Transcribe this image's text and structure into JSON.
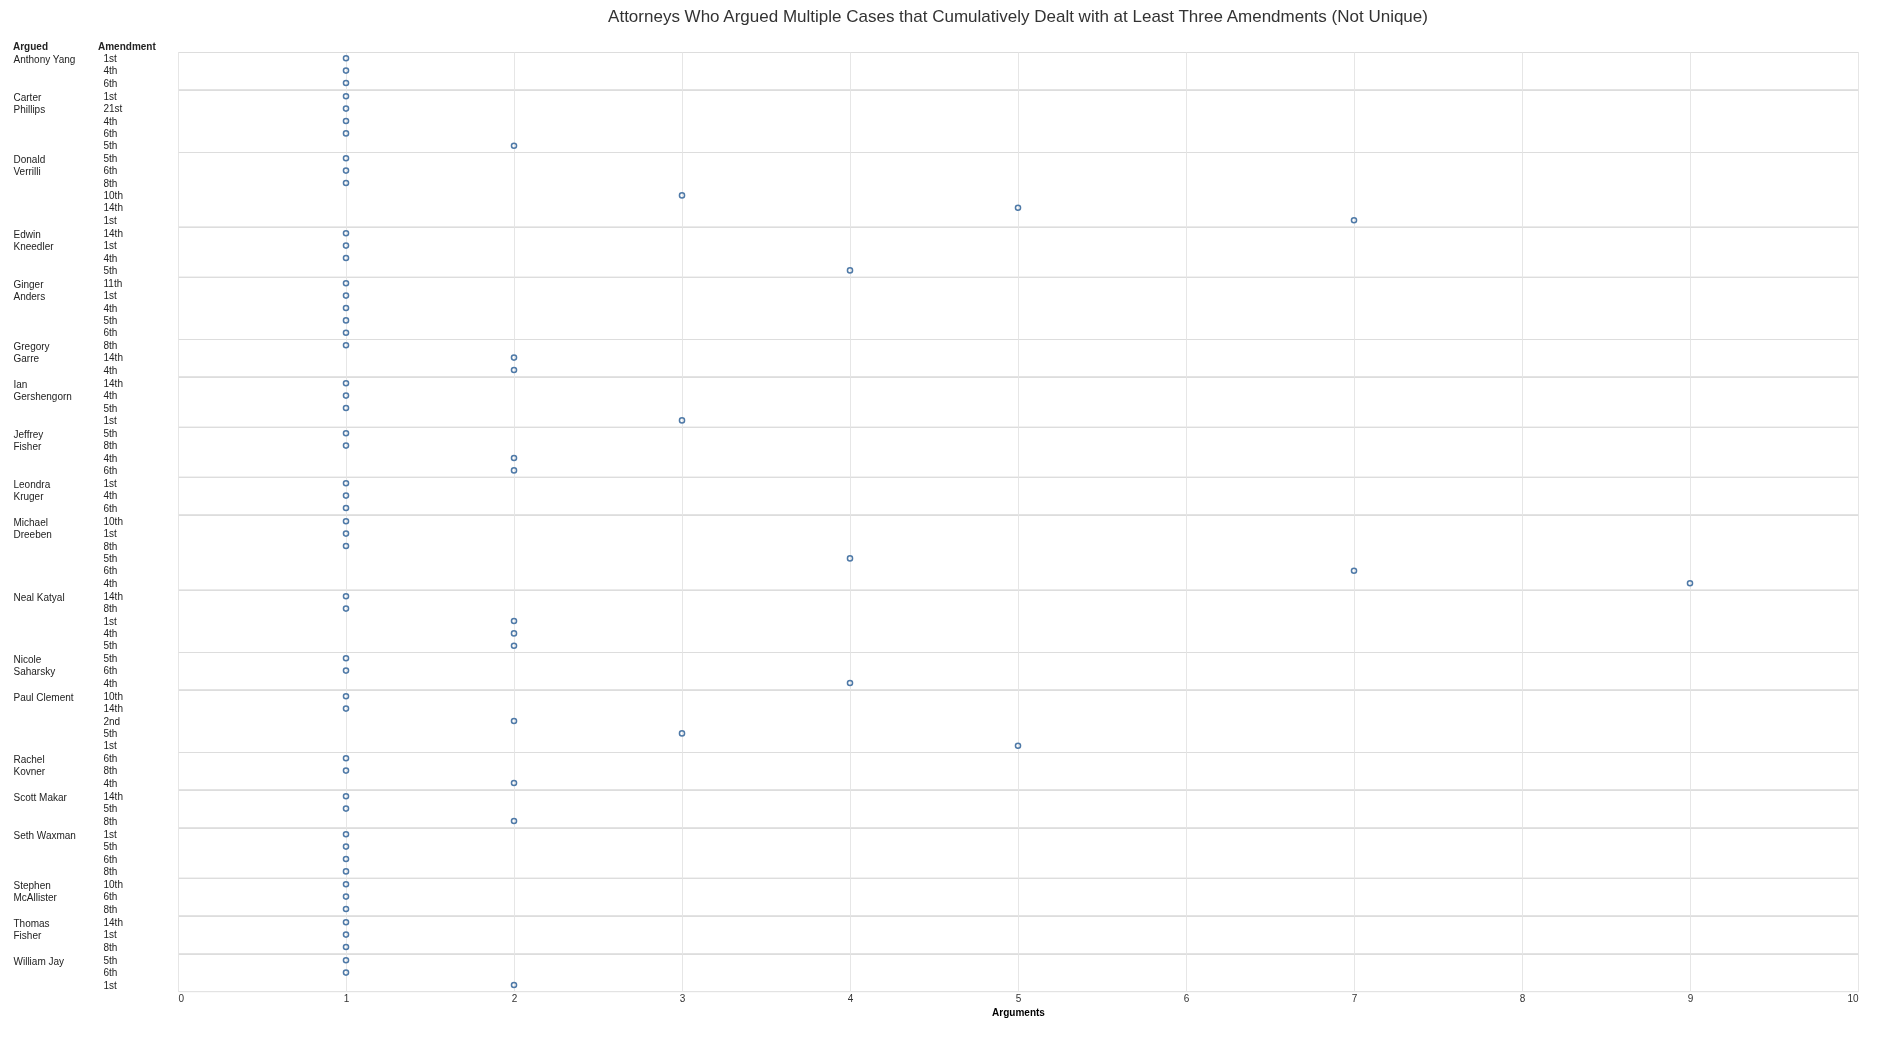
{
  "chart_data": [
    {
      "type": "other",
      "title": "Attorneys  Who Argued Multiple Cases that  Cumulatively Dealt with at Least Three Amendments (Not Unique)",
      "annotations": [
        "Argued",
        "Amendment"
      ]
    },
    {
      "type": "scatter",
      "orientation": "horizontal",
      "ylabel": "Anthony Yang",
      "categories": [
        "1st",
        "4th",
        "6th"
      ],
      "values": [
        1,
        1,
        1
      ],
      "xlim": [
        0,
        10
      ],
      "xticks": [
        0,
        1,
        2,
        3,
        4,
        5,
        6,
        7,
        8,
        9,
        10
      ],
      "grid": "x",
      "marker": "circle",
      "color": "#4e79a7",
      "tick_labels": "y"
    },
    {
      "type": "scatter",
      "orientation": "horizontal",
      "ylabel": "Carter Phillips",
      "categories": [
        "1st",
        "21st",
        "4th",
        "6th",
        "5th"
      ],
      "values": [
        1,
        1,
        1,
        1,
        2
      ],
      "xlim": [
        0,
        10
      ],
      "xticks": [
        0,
        1,
        2,
        3,
        4,
        5,
        6,
        7,
        8,
        9,
        10
      ],
      "grid": "x",
      "marker": "circle",
      "color": "#4e79a7",
      "tick_labels": "y"
    },
    {
      "type": "scatter",
      "orientation": "horizontal",
      "ylabel": "Donald Verrilli",
      "categories": [
        "5th",
        "6th",
        "8th",
        "10th",
        "14th",
        "1st"
      ],
      "values": [
        1,
        1,
        1,
        3,
        5,
        7
      ],
      "xlim": [
        0,
        10
      ],
      "xticks": [
        0,
        1,
        2,
        3,
        4,
        5,
        6,
        7,
        8,
        9,
        10
      ],
      "grid": "x",
      "marker": "circle",
      "color": "#4e79a7",
      "tick_labels": "y"
    },
    {
      "type": "scatter",
      "orientation": "horizontal",
      "ylabel": "Edwin Kneedler",
      "categories": [
        "14th",
        "1st",
        "4th",
        "5th"
      ],
      "values": [
        1,
        1,
        1,
        4
      ],
      "xlim": [
        0,
        10
      ],
      "xticks": [
        0,
        1,
        2,
        3,
        4,
        5,
        6,
        7,
        8,
        9,
        10
      ],
      "grid": "x",
      "marker": "circle",
      "color": "#4e79a7",
      "tick_labels": "y"
    },
    {
      "type": "scatter",
      "orientation": "horizontal",
      "ylabel": "Ginger Anders",
      "categories": [
        "11th",
        "1st",
        "4th",
        "5th",
        "6th"
      ],
      "values": [
        1,
        1,
        1,
        1,
        1
      ],
      "xlim": [
        0,
        10
      ],
      "xticks": [
        0,
        1,
        2,
        3,
        4,
        5,
        6,
        7,
        8,
        9,
        10
      ],
      "grid": "x",
      "marker": "circle",
      "color": "#4e79a7",
      "tick_labels": "y"
    },
    {
      "type": "scatter",
      "orientation": "horizontal",
      "ylabel": "Gregory Garre",
      "categories": [
        "8th",
        "14th",
        "4th"
      ],
      "values": [
        1,
        2,
        2
      ],
      "xlim": [
        0,
        10
      ],
      "xticks": [
        0,
        1,
        2,
        3,
        4,
        5,
        6,
        7,
        8,
        9,
        10
      ],
      "grid": "x",
      "marker": "circle",
      "color": "#4e79a7",
      "tick_labels": "y"
    },
    {
      "type": "scatter",
      "orientation": "horizontal",
      "ylabel": "Ian Gershengorn",
      "categories": [
        "14th",
        "4th",
        "5th",
        "1st"
      ],
      "values": [
        1,
        1,
        1,
        3
      ],
      "xlim": [
        0,
        10
      ],
      "xticks": [
        0,
        1,
        2,
        3,
        4,
        5,
        6,
        7,
        8,
        9,
        10
      ],
      "grid": "x",
      "marker": "circle",
      "color": "#4e79a7",
      "tick_labels": "y"
    },
    {
      "type": "scatter",
      "orientation": "horizontal",
      "ylabel": "Jeffrey Fisher",
      "categories": [
        "5th",
        "8th",
        "4th",
        "6th"
      ],
      "values": [
        1,
        1,
        2,
        2
      ],
      "xlim": [
        0,
        10
      ],
      "xticks": [
        0,
        1,
        2,
        3,
        4,
        5,
        6,
        7,
        8,
        9,
        10
      ],
      "grid": "x",
      "marker": "circle",
      "color": "#4e79a7",
      "tick_labels": "y"
    },
    {
      "type": "scatter",
      "orientation": "horizontal",
      "ylabel": "Leondra Kruger",
      "categories": [
        "1st",
        "4th",
        "6th"
      ],
      "values": [
        1,
        1,
        1
      ],
      "xlim": [
        0,
        10
      ],
      "xticks": [
        0,
        1,
        2,
        3,
        4,
        5,
        6,
        7,
        8,
        9,
        10
      ],
      "grid": "x",
      "marker": "circle",
      "color": "#4e79a7",
      "tick_labels": "y"
    },
    {
      "type": "scatter",
      "orientation": "horizontal",
      "ylabel": "Michael Dreeben",
      "categories": [
        "10th",
        "1st",
        "8th",
        "5th",
        "6th",
        "4th"
      ],
      "values": [
        1,
        1,
        1,
        4,
        7,
        9
      ],
      "xlim": [
        0,
        10
      ],
      "xticks": [
        0,
        1,
        2,
        3,
        4,
        5,
        6,
        7,
        8,
        9,
        10
      ],
      "grid": "x",
      "marker": "circle",
      "color": "#4e79a7",
      "tick_labels": "y"
    },
    {
      "type": "scatter",
      "orientation": "horizontal",
      "ylabel": "Neal Katyal",
      "categories": [
        "14th",
        "8th",
        "1st",
        "4th",
        "5th"
      ],
      "values": [
        1,
        1,
        2,
        2,
        2
      ],
      "xlim": [
        0,
        10
      ],
      "xticks": [
        0,
        1,
        2,
        3,
        4,
        5,
        6,
        7,
        8,
        9,
        10
      ],
      "grid": "x",
      "marker": "circle",
      "color": "#4e79a7",
      "tick_labels": "y"
    },
    {
      "type": "scatter",
      "orientation": "horizontal",
      "ylabel": "Nicole Saharsky",
      "categories": [
        "5th",
        "6th",
        "4th"
      ],
      "values": [
        1,
        1,
        4
      ],
      "xlim": [
        0,
        10
      ],
      "xticks": [
        0,
        1,
        2,
        3,
        4,
        5,
        6,
        7,
        8,
        9,
        10
      ],
      "grid": "x",
      "marker": "circle",
      "color": "#4e79a7",
      "tick_labels": "y"
    },
    {
      "type": "scatter",
      "orientation": "horizontal",
      "ylabel": "Paul Clement",
      "categories": [
        "10th",
        "14th",
        "2nd",
        "5th",
        "1st"
      ],
      "values": [
        1,
        1,
        2,
        3,
        5
      ],
      "xlim": [
        0,
        10
      ],
      "xticks": [
        0,
        1,
        2,
        3,
        4,
        5,
        6,
        7,
        8,
        9,
        10
      ],
      "grid": "x",
      "marker": "circle",
      "color": "#4e79a7",
      "tick_labels": "y"
    },
    {
      "type": "scatter",
      "orientation": "horizontal",
      "ylabel": "Rachel Kovner",
      "categories": [
        "6th",
        "8th",
        "4th"
      ],
      "values": [
        1,
        1,
        2
      ],
      "xlim": [
        0,
        10
      ],
      "xticks": [
        0,
        1,
        2,
        3,
        4,
        5,
        6,
        7,
        8,
        9,
        10
      ],
      "grid": "x",
      "marker": "circle",
      "color": "#4e79a7",
      "tick_labels": "y"
    },
    {
      "type": "scatter",
      "orientation": "horizontal",
      "ylabel": "Scott Makar",
      "categories": [
        "14th",
        "5th",
        "8th"
      ],
      "values": [
        1,
        1,
        2
      ],
      "xlim": [
        0,
        10
      ],
      "xticks": [
        0,
        1,
        2,
        3,
        4,
        5,
        6,
        7,
        8,
        9,
        10
      ],
      "grid": "x",
      "marker": "circle",
      "color": "#4e79a7",
      "tick_labels": "y"
    },
    {
      "type": "scatter",
      "orientation": "horizontal",
      "ylabel": "Seth Waxman",
      "categories": [
        "1st",
        "5th",
        "6th",
        "8th"
      ],
      "values": [
        1,
        1,
        1,
        1
      ],
      "xlim": [
        0,
        10
      ],
      "xticks": [
        0,
        1,
        2,
        3,
        4,
        5,
        6,
        7,
        8,
        9,
        10
      ],
      "grid": "x",
      "marker": "circle",
      "color": "#4e79a7",
      "tick_labels": "y"
    },
    {
      "type": "scatter",
      "orientation": "horizontal",
      "ylabel": "Stephen McAllister",
      "categories": [
        "10th",
        "6th",
        "8th"
      ],
      "values": [
        1,
        1,
        1
      ],
      "xlim": [
        0,
        10
      ],
      "xticks": [
        0,
        1,
        2,
        3,
        4,
        5,
        6,
        7,
        8,
        9,
        10
      ],
      "grid": "x",
      "marker": "circle",
      "color": "#4e79a7",
      "tick_labels": "y"
    },
    {
      "type": "scatter",
      "orientation": "horizontal",
      "ylabel": "Thomas Fisher",
      "categories": [
        "14th",
        "1st",
        "8th"
      ],
      "values": [
        1,
        1,
        1
      ],
      "xlim": [
        0,
        10
      ],
      "xticks": [
        0,
        1,
        2,
        3,
        4,
        5,
        6,
        7,
        8,
        9,
        10
      ],
      "grid": "x",
      "marker": "circle",
      "color": "#4e79a7",
      "tick_labels": "y"
    },
    {
      "type": "scatter",
      "orientation": "horizontal",
      "ylabel": "William Jay",
      "categories": [
        "5th",
        "6th",
        "1st"
      ],
      "values": [
        1,
        1,
        2
      ],
      "xlim": [
        0,
        10
      ],
      "xticks": [
        0,
        1,
        2,
        3,
        4,
        5,
        6,
        7,
        8,
        9,
        10
      ],
      "grid": "x",
      "marker": "circle",
      "color": "#4e79a7",
      "xlabel": "Arguments"
    }
  ]
}
